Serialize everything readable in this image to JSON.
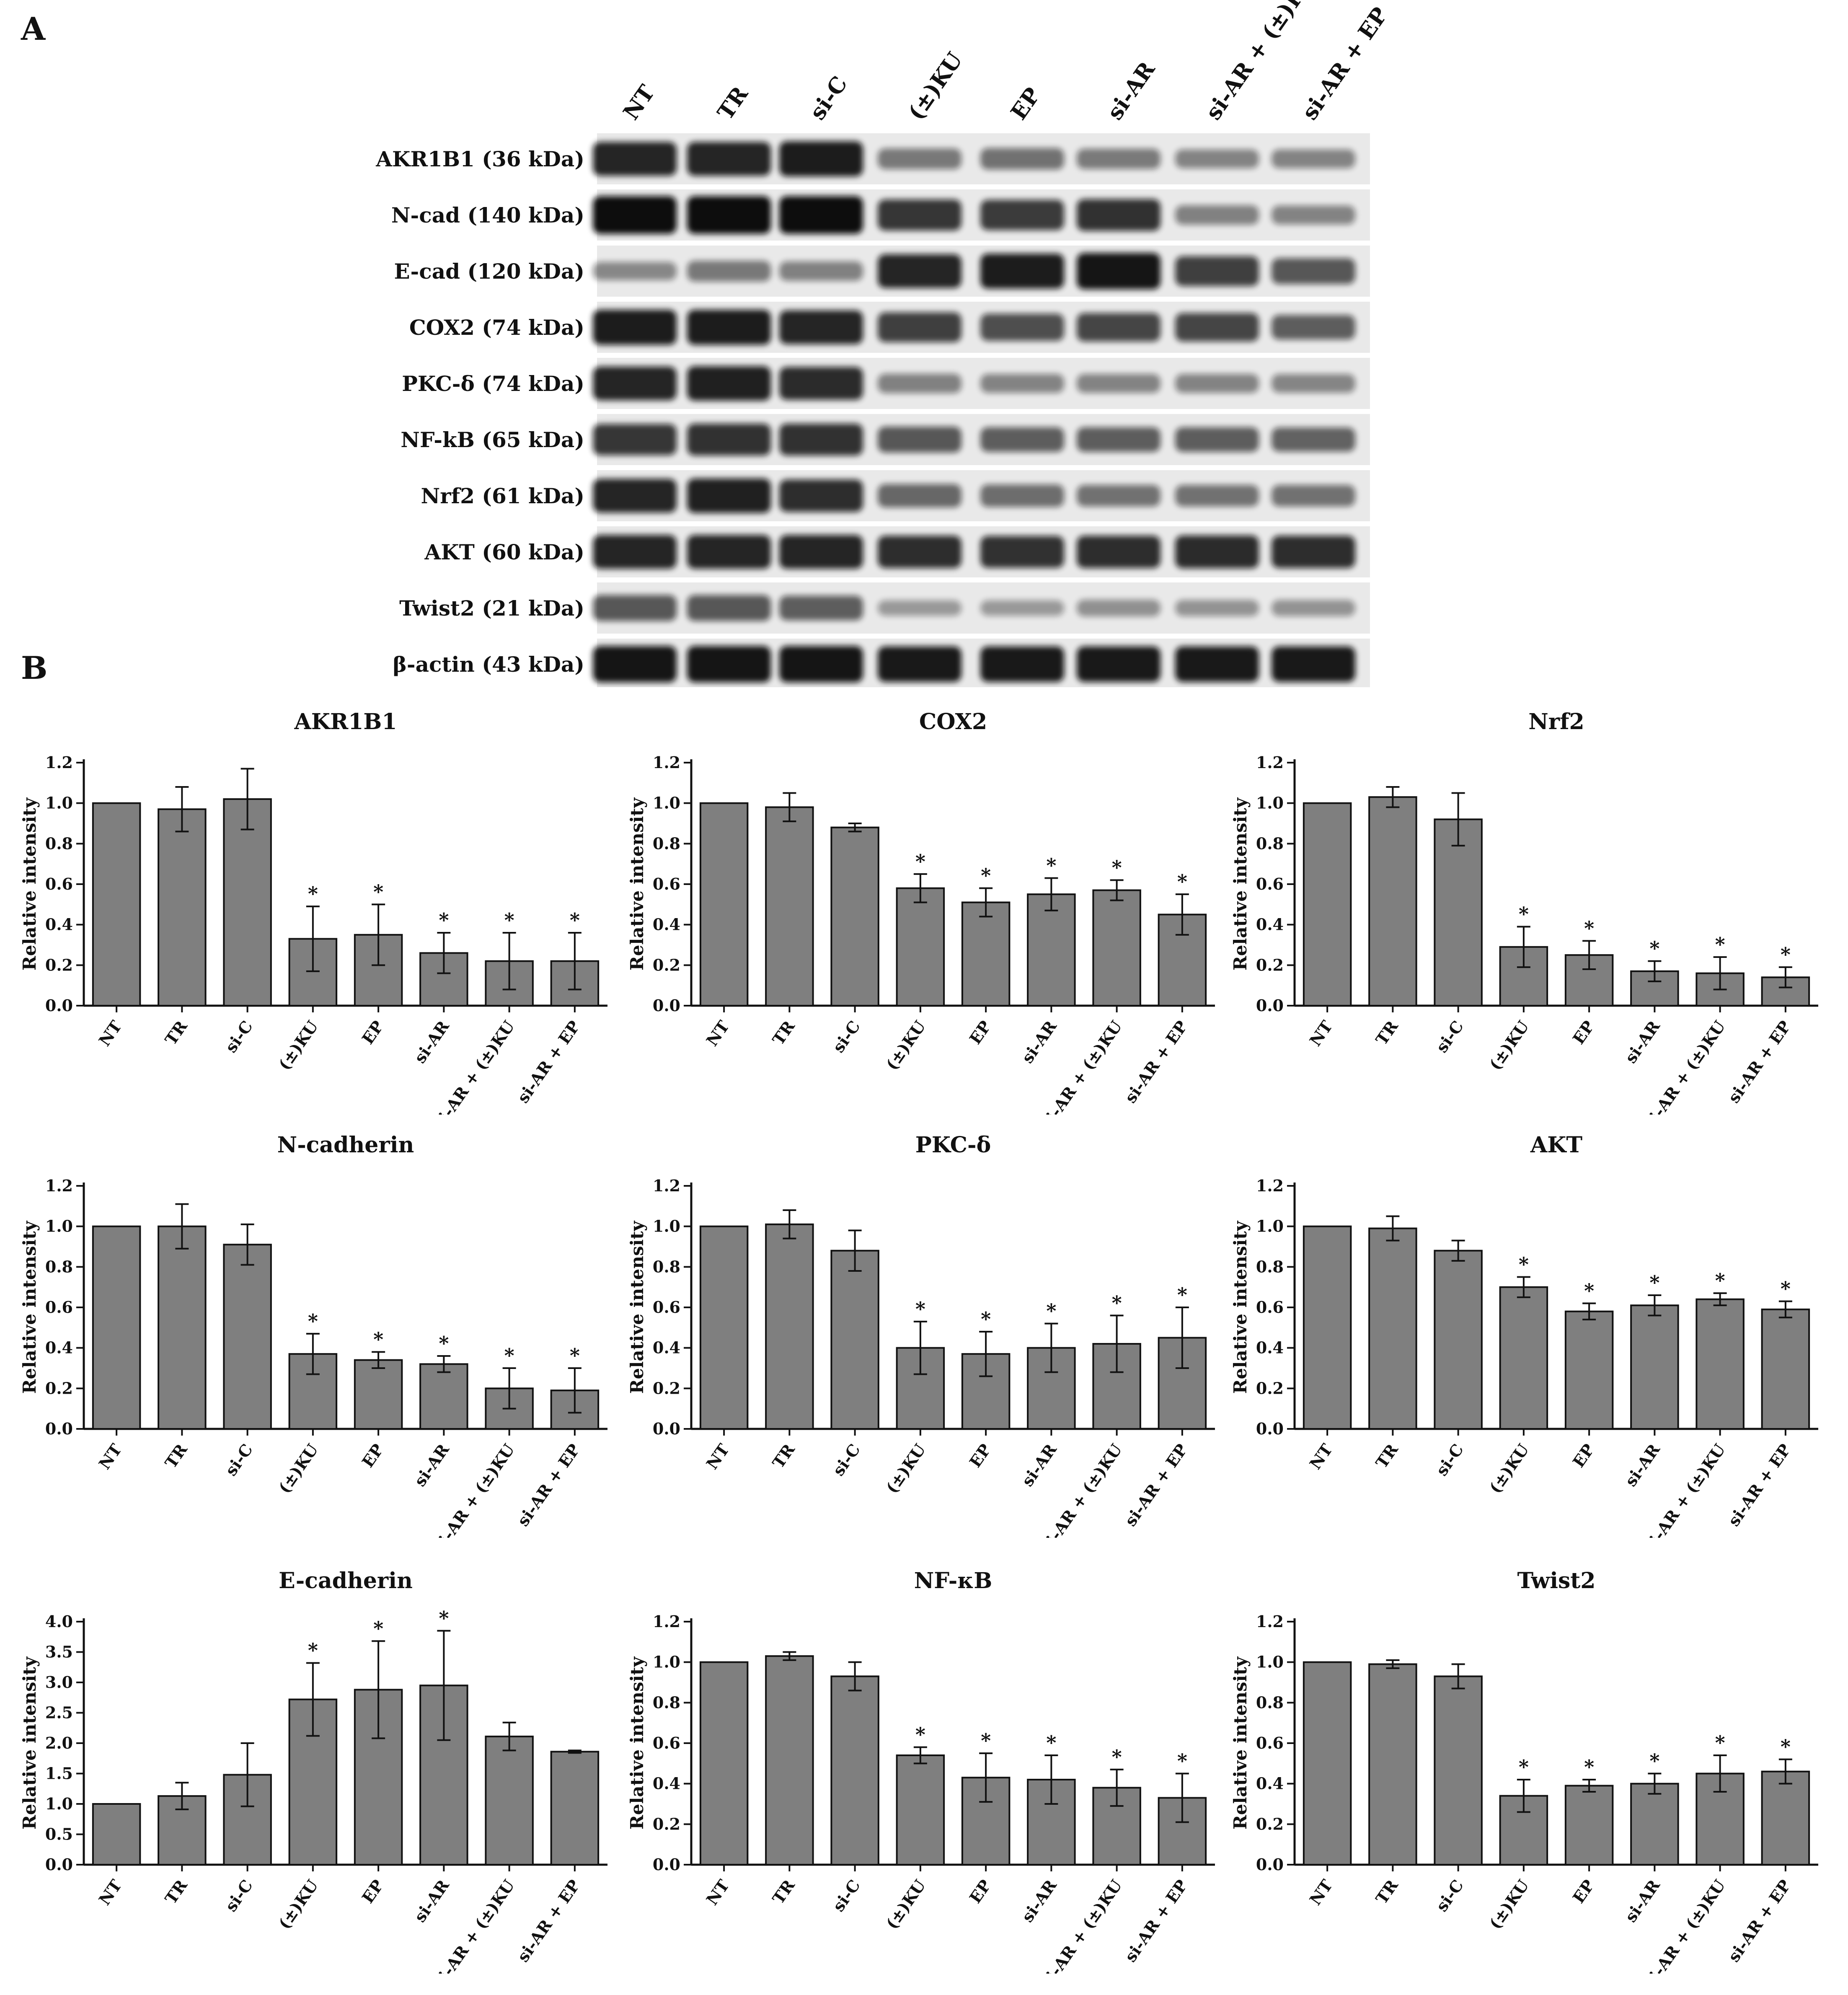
{
  "figure": {
    "panel_a_label": "A",
    "panel_b_label": "B"
  },
  "blot": {
    "lanes": [
      "NT",
      "TR",
      "si-C",
      "(±)KU",
      "EP",
      "si-AR",
      "si-AR + (±)KU",
      "si-AR + EP"
    ],
    "bands": [
      {
        "label": "AKR1B1 (36 kDa)",
        "intensity": [
          0.85,
          0.85,
          0.9,
          0.35,
          0.38,
          0.33,
          0.28,
          0.28
        ]
      },
      {
        "label": "N-cad (140 kDa)",
        "intensity": [
          1.0,
          1.0,
          1.0,
          0.75,
          0.72,
          0.78,
          0.3,
          0.28
        ]
      },
      {
        "label": "E-cad (120 kDa)",
        "intensity": [
          0.25,
          0.35,
          0.3,
          0.85,
          0.9,
          0.95,
          0.7,
          0.55
        ]
      },
      {
        "label": "COX2 (74 kDa)",
        "intensity": [
          0.9,
          0.9,
          0.85,
          0.7,
          0.6,
          0.65,
          0.65,
          0.5
        ]
      },
      {
        "label": "PKC-δ (74 kDa)",
        "intensity": [
          0.85,
          0.88,
          0.82,
          0.3,
          0.28,
          0.28,
          0.28,
          0.27
        ]
      },
      {
        "label": "NF-kB (65 kDa)",
        "intensity": [
          0.75,
          0.78,
          0.78,
          0.55,
          0.5,
          0.5,
          0.5,
          0.48
        ]
      },
      {
        "label": "Nrf2 (61 kDa)",
        "intensity": [
          0.85,
          0.88,
          0.8,
          0.45,
          0.42,
          0.38,
          0.38,
          0.38
        ]
      },
      {
        "label": "AKT (60 kDa)",
        "intensity": [
          0.85,
          0.85,
          0.85,
          0.8,
          0.78,
          0.8,
          0.82,
          0.8
        ]
      },
      {
        "label": "Twist2 (21 kDa)",
        "intensity": [
          0.55,
          0.55,
          0.5,
          0.15,
          0.15,
          0.2,
          0.18,
          0.18
        ]
      },
      {
        "label": "β-actin (43 kDa)",
        "intensity": [
          0.95,
          0.95,
          0.95,
          0.92,
          0.92,
          0.92,
          0.92,
          0.92
        ]
      }
    ]
  },
  "chart_data": [
    {
      "type": "bar",
      "title": "AKR1B1",
      "ylabel": "Relative intensity",
      "ylim": [
        0,
        1.2
      ],
      "yticks": [
        "0.0",
        "0.2",
        "0.4",
        "0.6",
        "0.8",
        "1.0",
        "1.2"
      ],
      "categories": [
        "NT",
        "TR",
        "si-C",
        "(±)KU",
        "EP",
        "si-AR",
        "si-AR + (±)KU",
        "si-AR + EP"
      ],
      "values": [
        1.0,
        0.97,
        1.02,
        0.33,
        0.35,
        0.26,
        0.22,
        0.22
      ],
      "errors": [
        0,
        0.11,
        0.15,
        0.16,
        0.15,
        0.1,
        0.14,
        0.14
      ],
      "significant": [
        false,
        false,
        false,
        true,
        true,
        true,
        true,
        true
      ],
      "marker": "*"
    },
    {
      "type": "bar",
      "title": "COX2",
      "ylabel": "Relative intensity",
      "ylim": [
        0,
        1.2
      ],
      "yticks": [
        "0.0",
        "0.2",
        "0.4",
        "0.6",
        "0.8",
        "1.0",
        "1.2"
      ],
      "categories": [
        "NT",
        "TR",
        "si-C",
        "(±)KU",
        "EP",
        "si-AR",
        "si-AR + (±)KU",
        "si-AR + EP"
      ],
      "values": [
        1.0,
        0.98,
        0.88,
        0.58,
        0.51,
        0.55,
        0.57,
        0.45
      ],
      "errors": [
        0,
        0.07,
        0.02,
        0.07,
        0.07,
        0.08,
        0.05,
        0.1
      ],
      "significant": [
        false,
        false,
        false,
        true,
        true,
        true,
        true,
        true
      ],
      "marker": "*"
    },
    {
      "type": "bar",
      "title": "Nrf2",
      "ylabel": "Relative intensity",
      "ylim": [
        0,
        1.2
      ],
      "yticks": [
        "0.0",
        "0.2",
        "0.4",
        "0.6",
        "0.8",
        "1.0",
        "1.2"
      ],
      "categories": [
        "NT",
        "TR",
        "si-C",
        "(±)KU",
        "EP",
        "si-AR",
        "si-AR + (±)KU",
        "si-AR + EP"
      ],
      "values": [
        1.0,
        1.03,
        0.92,
        0.29,
        0.25,
        0.17,
        0.16,
        0.14
      ],
      "errors": [
        0,
        0.05,
        0.13,
        0.1,
        0.07,
        0.05,
        0.08,
        0.05
      ],
      "significant": [
        false,
        false,
        false,
        true,
        true,
        true,
        true,
        true
      ],
      "marker": "*"
    },
    {
      "type": "bar",
      "title": "N-cadherin",
      "ylabel": "Relative intensity",
      "ylim": [
        0,
        1.2
      ],
      "yticks": [
        "0.0",
        "0.2",
        "0.4",
        "0.6",
        "0.8",
        "1.0",
        "1.2"
      ],
      "categories": [
        "NT",
        "TR",
        "si-C",
        "(±)KU",
        "EP",
        "si-AR",
        "si-AR + (±)KU",
        "si-AR + EP"
      ],
      "values": [
        1.0,
        1.0,
        0.91,
        0.37,
        0.34,
        0.32,
        0.2,
        0.19
      ],
      "errors": [
        0,
        0.11,
        0.1,
        0.1,
        0.04,
        0.04,
        0.1,
        0.11
      ],
      "significant": [
        false,
        false,
        false,
        true,
        true,
        true,
        true,
        true
      ],
      "marker": "*"
    },
    {
      "type": "bar",
      "title": "PKC-δ",
      "ylabel": "Relative intensity",
      "ylim": [
        0,
        1.2
      ],
      "yticks": [
        "0.0",
        "0.2",
        "0.4",
        "0.6",
        "0.8",
        "1.0",
        "1.2"
      ],
      "categories": [
        "NT",
        "TR",
        "si-C",
        "(±)KU",
        "EP",
        "si-AR",
        "si-AR + (±)KU",
        "si-AR + EP"
      ],
      "values": [
        1.0,
        1.01,
        0.88,
        0.4,
        0.37,
        0.4,
        0.42,
        0.45
      ],
      "errors": [
        0,
        0.07,
        0.1,
        0.13,
        0.11,
        0.12,
        0.14,
        0.15
      ],
      "significant": [
        false,
        false,
        false,
        true,
        true,
        true,
        true,
        true
      ],
      "marker": "*"
    },
    {
      "type": "bar",
      "title": "AKT",
      "ylabel": "Relative intensity",
      "ylim": [
        0,
        1.2
      ],
      "yticks": [
        "0.0",
        "0.2",
        "0.4",
        "0.6",
        "0.8",
        "1.0",
        "1.2"
      ],
      "categories": [
        "NT",
        "TR",
        "si-C",
        "(±)KU",
        "EP",
        "si-AR",
        "si-AR + (±)KU",
        "si-AR + EP"
      ],
      "values": [
        1.0,
        0.99,
        0.88,
        0.7,
        0.58,
        0.61,
        0.64,
        0.59
      ],
      "errors": [
        0,
        0.06,
        0.05,
        0.05,
        0.04,
        0.05,
        0.03,
        0.04
      ],
      "significant": [
        false,
        false,
        false,
        true,
        true,
        true,
        true,
        true
      ],
      "marker": "*"
    },
    {
      "type": "bar",
      "title": "E-cadherin",
      "ylabel": "Relative intensity",
      "ylim": [
        0,
        4.0
      ],
      "yticks": [
        "0.0",
        "0.5",
        "1.0",
        "1.5",
        "2.0",
        "2.5",
        "3.0",
        "3.5",
        "4.0"
      ],
      "categories": [
        "NT",
        "TR",
        "si-C",
        "(±)KU",
        "EP",
        "si-AR",
        "si-AR + (±)KU",
        "si-AR + EP"
      ],
      "values": [
        1.0,
        1.13,
        1.48,
        2.72,
        2.88,
        2.95,
        2.11,
        1.86
      ],
      "errors": [
        0,
        0.22,
        0.52,
        0.6,
        0.8,
        0.9,
        0.23,
        0.02
      ],
      "significant": [
        false,
        false,
        false,
        true,
        true,
        true,
        false,
        false
      ],
      "marker": "*"
    },
    {
      "type": "bar",
      "title": "NF-κB",
      "ylabel": "Relative intensity",
      "ylim": [
        0,
        1.2
      ],
      "yticks": [
        "0.0",
        "0.2",
        "0.4",
        "0.6",
        "0.8",
        "1.0",
        "1.2"
      ],
      "categories": [
        "NT",
        "TR",
        "si-C",
        "(±)KU",
        "EP",
        "si-AR",
        "si-AR + (±)KU",
        "si-AR + EP"
      ],
      "values": [
        1.0,
        1.03,
        0.93,
        0.54,
        0.43,
        0.42,
        0.38,
        0.33
      ],
      "errors": [
        0,
        0.02,
        0.07,
        0.04,
        0.12,
        0.12,
        0.09,
        0.12
      ],
      "significant": [
        false,
        false,
        false,
        true,
        true,
        true,
        true,
        true
      ],
      "marker": "*"
    },
    {
      "type": "bar",
      "title": "Twist2",
      "ylabel": "Relative intensity",
      "ylim": [
        0,
        1.2
      ],
      "yticks": [
        "0.0",
        "0.2",
        "0.4",
        "0.6",
        "0.8",
        "1.0",
        "1.2"
      ],
      "categories": [
        "NT",
        "TR",
        "si-C",
        "(±)KU",
        "EP",
        "si-AR",
        "si-AR + (±)KU",
        "si-AR + EP"
      ],
      "values": [
        1.0,
        0.99,
        0.93,
        0.34,
        0.39,
        0.4,
        0.45,
        0.46
      ],
      "errors": [
        0,
        0.02,
        0.06,
        0.08,
        0.03,
        0.05,
        0.09,
        0.06
      ],
      "significant": [
        false,
        false,
        false,
        true,
        true,
        true,
        true,
        true
      ],
      "marker": "*"
    }
  ],
  "colors": {
    "bar_fill": "#7f7f7f",
    "bar_stroke": "#111111",
    "axis": "#111111",
    "text": "#111111",
    "blot_bg": "#e9e9e9",
    "band": "#0a0a0a"
  }
}
